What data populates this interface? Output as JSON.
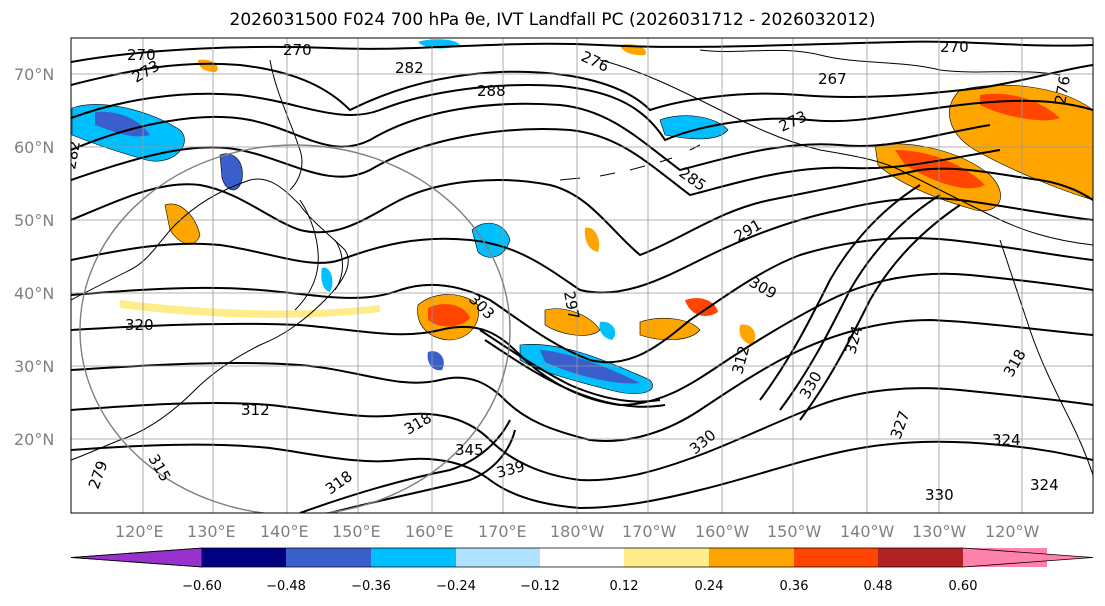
{
  "title": "2026031500 F024 700 hPa θe, IVT Landfall PC (2026031712 - 2026032012)",
  "lat_labels": [
    "70°N",
    "60°N",
    "50°N",
    "40°N",
    "30°N",
    "20°N"
  ],
  "lon_labels": [
    "120°E",
    "130°E",
    "140°E",
    "150°E",
    "160°E",
    "170°E",
    "180°W",
    "170°W",
    "160°W",
    "150°W",
    "140°W",
    "130°W",
    "120°W"
  ],
  "contour_labels": [
    "270",
    "273",
    "276",
    "282",
    "288",
    "270",
    "267",
    "273",
    "285",
    "291",
    "297",
    "303",
    "309",
    "312",
    "312",
    "315",
    "318",
    "320",
    "324",
    "324",
    "330",
    "330",
    "339",
    "345",
    "318",
    "327",
    "330",
    "324",
    "282",
    "279",
    "318",
    "276",
    "270"
  ],
  "colorbar": {
    "ticks": [
      "−0.60",
      "−0.48",
      "−0.36",
      "−0.24",
      "−0.12",
      "0.12",
      "0.24",
      "0.36",
      "0.48",
      "0.60"
    ],
    "colors": [
      "#9932cc",
      "#000080",
      "#3a5fcd",
      "#00bfff",
      "#b0e2ff",
      "#ffffff",
      "#ffec8b",
      "#ffa500",
      "#ff4500",
      "#b22222",
      "#ff82ab",
      "#ff82ab"
    ]
  },
  "colors": {
    "shade_blue_light": "#00bfff",
    "shade_blue_mid": "#3a5fcd",
    "shade_orange": "#ffa500",
    "shade_red": "#ff4500",
    "shade_yellow": "#ffec8b"
  }
}
